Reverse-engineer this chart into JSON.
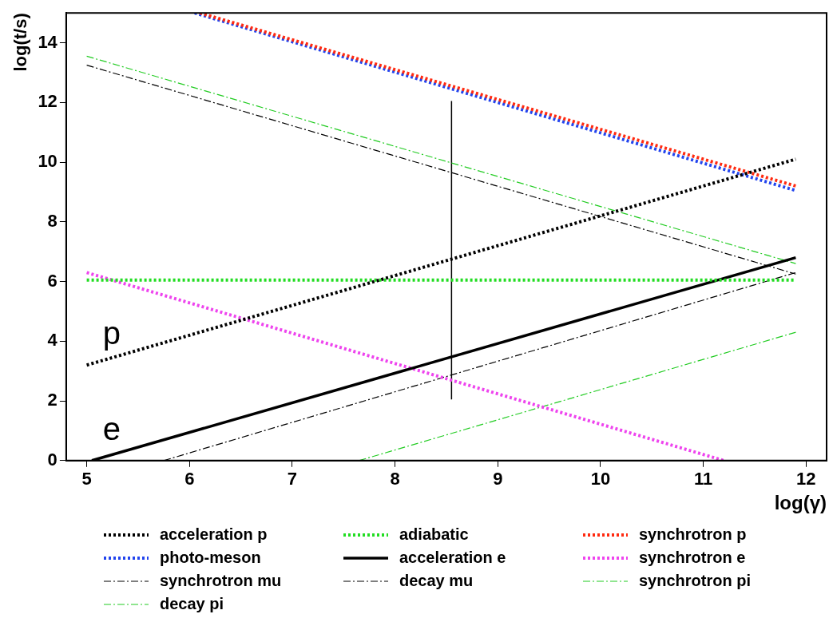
{
  "chart_data": {
    "type": "line",
    "xlabel": "log(γ)",
    "ylabel": "log(t/s)",
    "xlim": [
      4.8,
      12.2
    ],
    "ylim": [
      0,
      15
    ],
    "xticks": [
      5,
      6,
      7,
      8,
      9,
      10,
      11,
      12
    ],
    "yticks": [
      0,
      2,
      4,
      6,
      8,
      10,
      12,
      14
    ],
    "grid": false,
    "legend": "bottom",
    "marker": "none",
    "series": [
      {
        "name": "acceleration p",
        "color": "#000000",
        "line_style": "dotted",
        "x": [
          5,
          11.9
        ],
        "values": [
          3.2,
          10.1
        ]
      },
      {
        "name": "adiabatic",
        "color": "#22dd22",
        "line_style": "dotted",
        "x": [
          5,
          11.9
        ],
        "values": [
          6.05,
          6.05
        ]
      },
      {
        "name": "synchrotron p",
        "color": "#ff2a10",
        "line_style": "dotted",
        "x": [
          6.1,
          11.9
        ],
        "values": [
          15,
          9.2
        ]
      },
      {
        "name": "photo-meson",
        "color": "#2244ee",
        "line_style": "dotted",
        "x": [
          6.05,
          11.9
        ],
        "values": [
          15,
          9.05
        ]
      },
      {
        "name": "acceleration e",
        "color": "#000000",
        "line_style": "solid",
        "x": [
          5.05,
          11.9
        ],
        "values": [
          0,
          6.8
        ]
      },
      {
        "name": "synchrotron e",
        "color": "#ee44ee",
        "line_style": "dotted",
        "x": [
          5,
          11.2
        ],
        "values": [
          6.3,
          0
        ]
      },
      {
        "name": "synchrotron mu",
        "color": "#000000",
        "line_style": "dashed",
        "x": [
          5,
          11.9
        ],
        "values": [
          13.25,
          6.25
        ]
      },
      {
        "name": "decay mu",
        "color": "#000000",
        "line_style": "dashed",
        "x": [
          5.75,
          11.9
        ],
        "values": [
          0,
          6.3
        ]
      },
      {
        "name": "synchrotron pi",
        "color": "#22cc22",
        "line_style": "dashed",
        "x": [
          5,
          11.9
        ],
        "values": [
          13.55,
          6.6
        ]
      },
      {
        "name": "decay pi",
        "color": "#22cc22",
        "line_style": "dashed",
        "x": [
          7.65,
          11.9
        ],
        "values": [
          0,
          4.3
        ]
      },
      {
        "color": "#000000",
        "line_style": "solid",
        "x": [
          8.55,
          8.55
        ],
        "values": [
          2.05,
          12.05
        ]
      }
    ],
    "annotations": [
      "p",
      "e"
    ]
  }
}
